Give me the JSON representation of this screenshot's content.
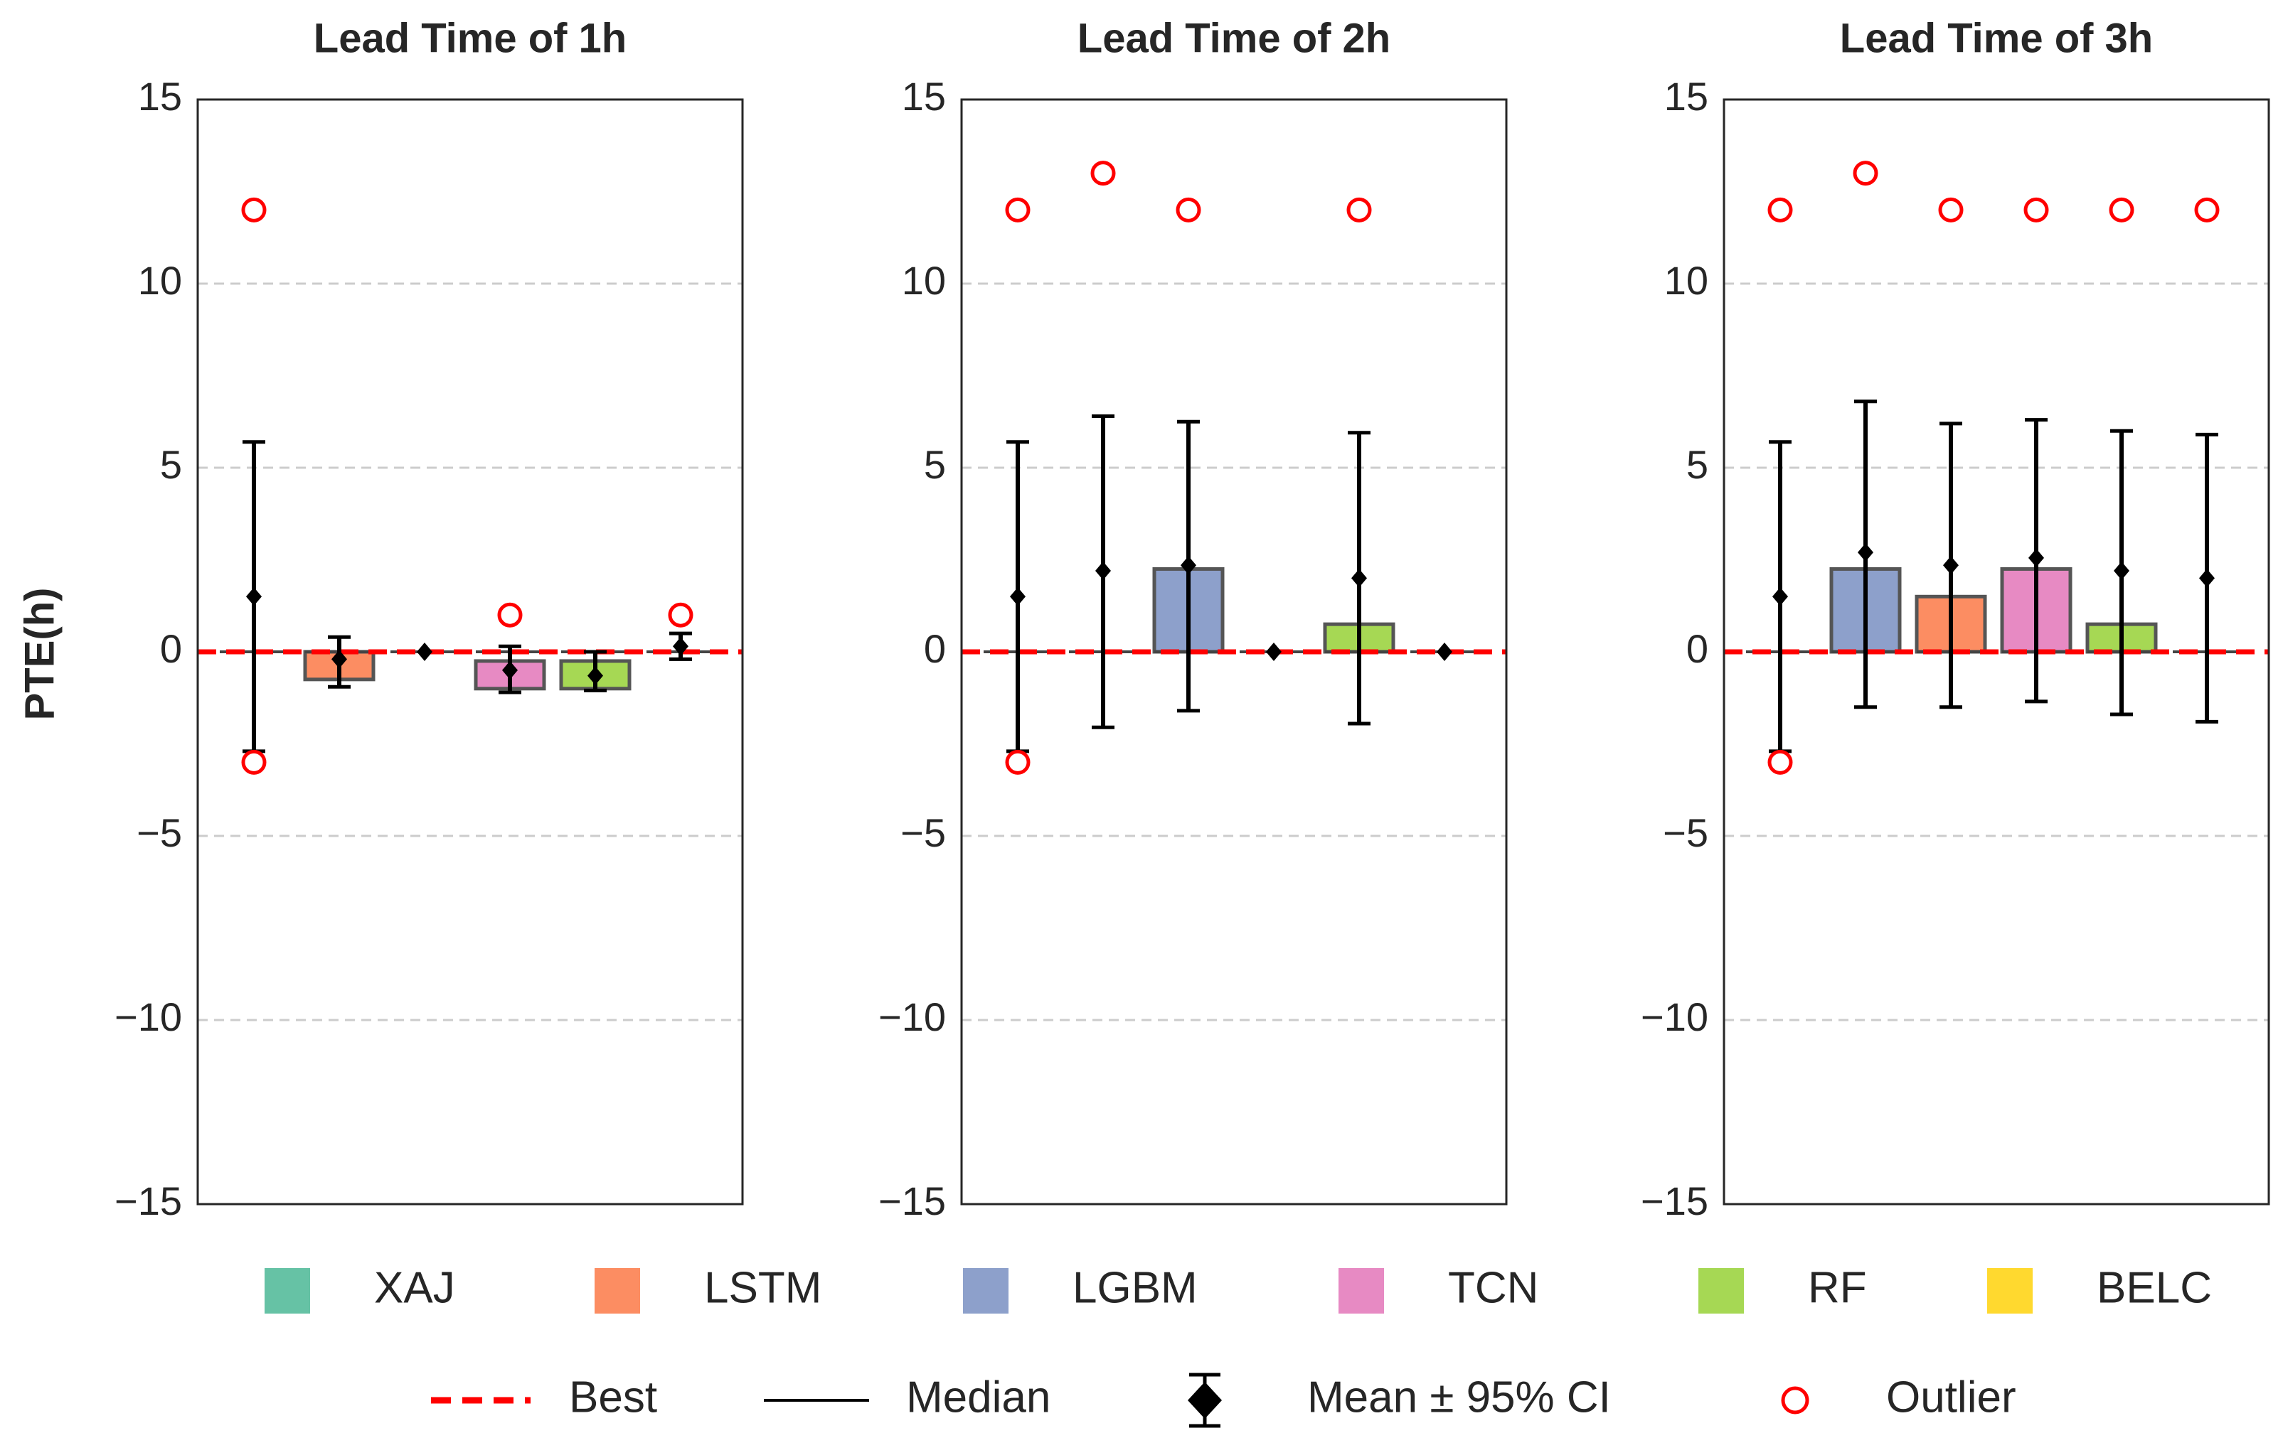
{
  "ylabel": "PTE(h)",
  "ylim": [
    -15,
    15
  ],
  "yticks": [
    15,
    10,
    5,
    0,
    -5,
    -10,
    -15
  ],
  "ytick_labels": [
    "15",
    "10",
    "5",
    "0",
    "−5",
    "−10",
    "−15"
  ],
  "best_value": 0,
  "colors": {
    "XAJ": "#66c2a5",
    "LSTM": "#fc8d62",
    "LGBM": "#8da0cb",
    "TCN": "#e78ac3",
    "RF": "#a6d854",
    "BELC": "#ffd92f",
    "best": "#ff0000",
    "outlier": "#ff0000",
    "mean": "#000000",
    "bar_edge": "#555555"
  },
  "models": [
    "XAJ",
    "LSTM",
    "LGBM",
    "TCN",
    "RF",
    "BELC"
  ],
  "legend": {
    "models": [
      "XAJ",
      "LSTM",
      "LGBM",
      "TCN",
      "RF",
      "BELC"
    ],
    "best": "Best",
    "median": "Median",
    "mean": "Mean ± 95% CI",
    "outlier": "Outlier"
  },
  "chart_data": [
    {
      "type": "bar",
      "title": "Lead Time of 1h",
      "categories": [
        "XAJ",
        "LSTM",
        "LGBM",
        "TCN",
        "RF",
        "BELC"
      ],
      "values": [
        0,
        -0.75,
        0,
        -1.0,
        -1.0,
        0
      ],
      "box_low": [
        0,
        -0.75,
        0,
        -1.0,
        -1.0,
        0
      ],
      "box_high": [
        0,
        0,
        0,
        -0.25,
        -0.25,
        0
      ],
      "median": [
        0,
        0,
        0,
        0,
        0,
        0
      ],
      "mean": [
        1.5,
        -0.2,
        0,
        -0.5,
        -0.65,
        0.15
      ],
      "ci_low": [
        -2.7,
        -0.95,
        0,
        -1.1,
        -1.05,
        -0.2
      ],
      "ci_high": [
        5.7,
        0.4,
        0,
        0.15,
        0,
        0.5
      ],
      "outliers": [
        [
          12,
          -3
        ],
        [],
        [],
        [
          1
        ],
        [],
        [
          1
        ]
      ],
      "ylim": [
        -15,
        15
      ]
    },
    {
      "type": "bar",
      "title": "Lead Time of 2h",
      "categories": [
        "XAJ",
        "LSTM",
        "LGBM",
        "TCN",
        "RF",
        "BELC"
      ],
      "values": [
        0,
        0,
        2.25,
        0,
        0.75,
        0
      ],
      "box_low": [
        0,
        0,
        0,
        0,
        0,
        0
      ],
      "box_high": [
        0,
        0,
        2.25,
        0,
        0.75,
        0
      ],
      "median": [
        0,
        0,
        0,
        0,
        0,
        0
      ],
      "mean": [
        1.5,
        2.2,
        2.35,
        0,
        2.0,
        0
      ],
      "ci_low": [
        -2.7,
        -2.05,
        -1.6,
        0,
        -1.95,
        0
      ],
      "ci_high": [
        5.7,
        6.4,
        6.25,
        0,
        5.95,
        0
      ],
      "outliers": [
        [
          12,
          -3
        ],
        [
          13
        ],
        [
          12
        ],
        [],
        [
          12
        ],
        []
      ],
      "ylim": [
        -15,
        15
      ]
    },
    {
      "type": "bar",
      "title": "Lead Time of 3h",
      "categories": [
        "XAJ",
        "LSTM",
        "LGBM",
        "TCN",
        "RF",
        "BELC"
      ],
      "values": [
        0,
        2.25,
        1.5,
        2.25,
        0.75,
        0
      ],
      "box_low": [
        0,
        0,
        0,
        0,
        0,
        0
      ],
      "box_high": [
        0,
        2.25,
        1.5,
        2.25,
        0.75,
        0
      ],
      "median": [
        0,
        0,
        0,
        0,
        0,
        0
      ],
      "mean": [
        1.5,
        2.7,
        2.35,
        2.55,
        2.2,
        2.0
      ],
      "ci_low": [
        -2.7,
        -1.5,
        -1.5,
        -1.35,
        -1.7,
        -1.9
      ],
      "ci_high": [
        5.7,
        6.8,
        6.2,
        6.3,
        6.0,
        5.9
      ],
      "outliers": [
        [
          12,
          -3
        ],
        [
          13
        ],
        [
          12
        ],
        [
          12
        ],
        [
          12
        ],
        [
          12
        ]
      ],
      "bar_colors": [
        "XAJ",
        "LGBM",
        "LSTM",
        "TCN",
        "RF",
        "BELC"
      ],
      "ylim": [
        -15,
        15
      ]
    }
  ]
}
